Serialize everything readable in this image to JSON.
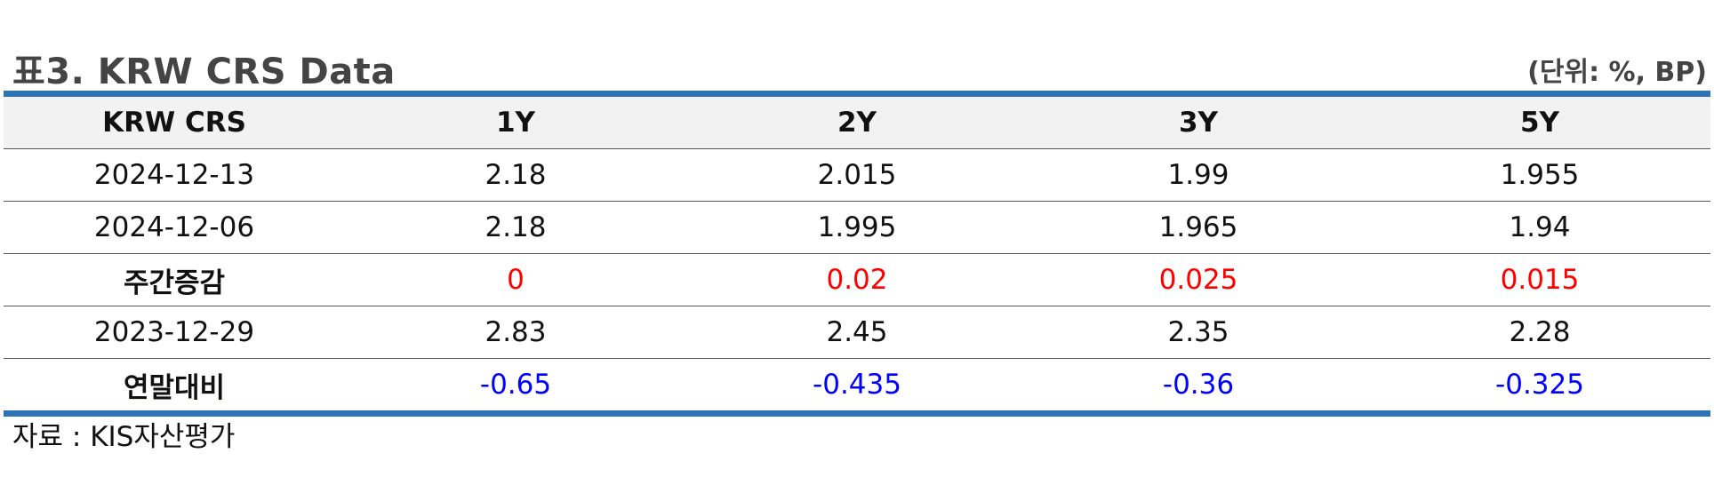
{
  "title": "표3. KRW CRS Data",
  "unit": "(단위: %, BP)",
  "table": {
    "headers": [
      "KRW CRS",
      "1Y",
      "2Y",
      "3Y",
      "5Y"
    ],
    "rows": [
      {
        "label": "2024-12-13",
        "values": [
          "2.18",
          "2.015",
          "1.99",
          "1.955"
        ]
      },
      {
        "label": "2024-12-06",
        "values": [
          "2.18",
          "1.995",
          "1.965",
          "1.94"
        ]
      },
      {
        "label": "주간증감",
        "values": [
          "0",
          "0.02",
          "0.025",
          "0.015"
        ]
      },
      {
        "label": "2023-12-29",
        "values": [
          "2.83",
          "2.45",
          "2.35",
          "2.28"
        ]
      },
      {
        "label": "연말대비",
        "values": [
          "-0.65",
          "-0.435",
          "-0.36",
          "-0.325"
        ]
      }
    ]
  },
  "source": "자료 : KIS자산평가",
  "colors": {
    "accent_bar": "#2e74b5",
    "increase": "#ff0000",
    "decrease": "#0000ff",
    "header_bg": "#f2f2f2"
  }
}
